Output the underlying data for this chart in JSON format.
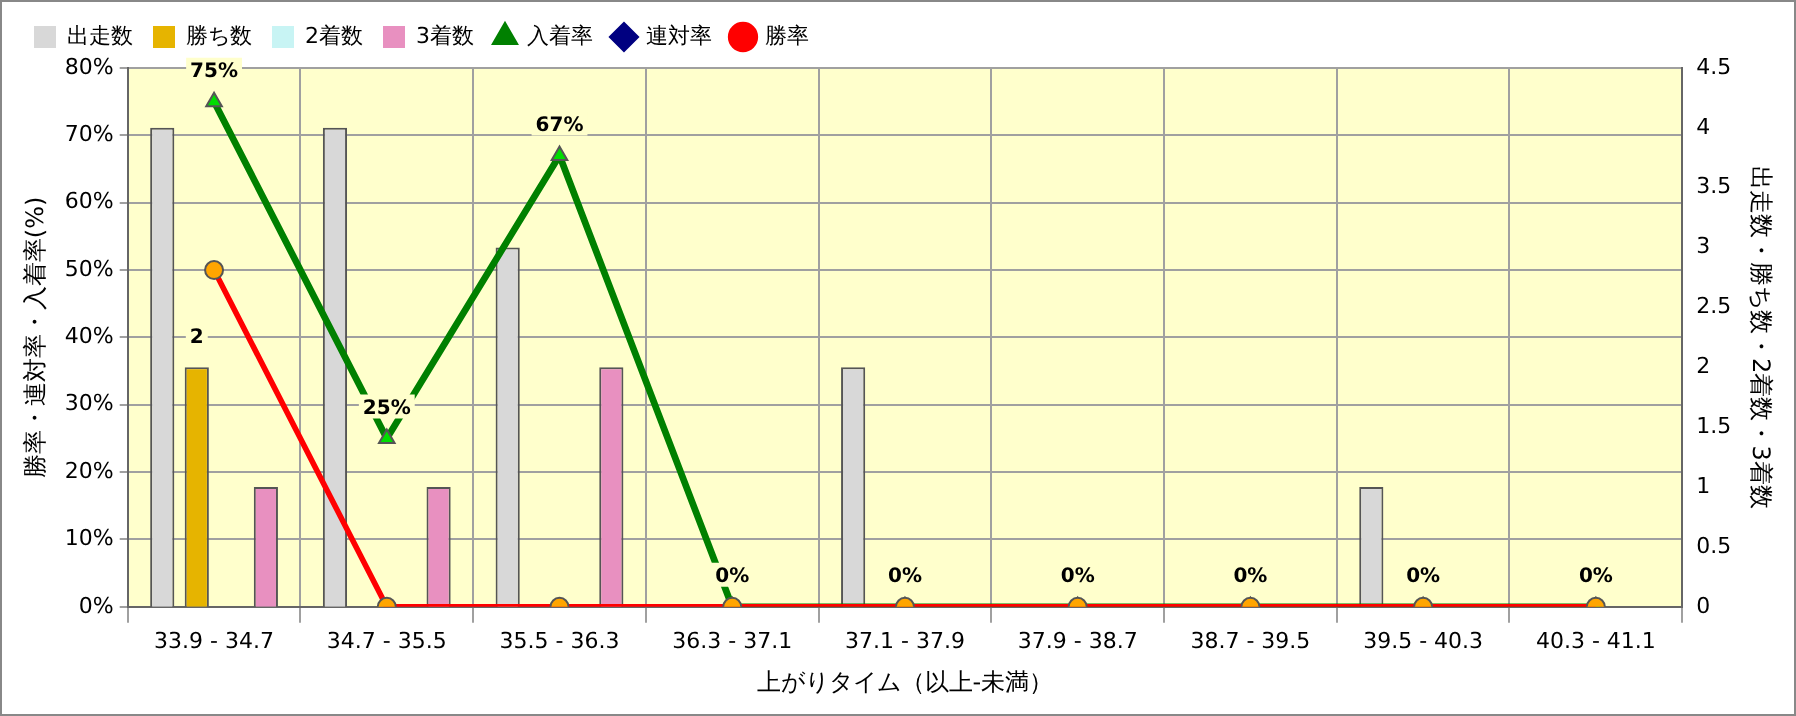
{
  "chart_data": {
    "type": "bar",
    "xlabel": "上がりタイム（以上-未満）",
    "ylabel": "勝率・連対率・入着率(%)",
    "y2label": "出走数・勝ち数・2着数・3着数",
    "categories": [
      "33.9 - 34.7",
      "34.7 - 35.5",
      "35.5 - 36.3",
      "36.3 - 37.1",
      "37.1 - 37.9",
      "37.9 - 38.7",
      "38.7 - 39.5",
      "39.5 - 40.3",
      "40.3 - 41.1"
    ],
    "series": [
      {
        "name": "出走数",
        "type": "bar",
        "axis": "y2",
        "color": "#d8d8d8",
        "values": [
          4,
          4,
          3,
          0,
          2,
          0,
          0,
          1,
          0
        ]
      },
      {
        "name": "勝ち数",
        "type": "bar",
        "axis": "y2",
        "color": "#e6b400",
        "values": [
          2,
          0,
          0,
          0,
          0,
          0,
          0,
          0,
          0
        ],
        "value_labels": [
          "2",
          null,
          null,
          null,
          null,
          null,
          null,
          null,
          null
        ]
      },
      {
        "name": "2着数",
        "type": "bar",
        "axis": "y2",
        "color": "#c8f4f4",
        "values": [
          0,
          0,
          0,
          0,
          0,
          0,
          0,
          0,
          0
        ]
      },
      {
        "name": "3着数",
        "type": "bar",
        "axis": "y2",
        "color": "#e890c0",
        "values": [
          1,
          1,
          2,
          0,
          0,
          0,
          0,
          0,
          0
        ]
      },
      {
        "name": "入着率",
        "type": "line",
        "axis": "y",
        "color": "#008000",
        "marker": "triangle",
        "values": [
          75,
          25,
          67,
          0,
          0,
          0,
          0,
          0,
          0
        ],
        "value_labels": [
          "75%",
          "25%",
          "67%",
          "0%",
          "0%",
          "0%",
          "0%",
          "0%",
          "0%"
        ]
      },
      {
        "name": "連対率",
        "type": "line",
        "axis": "y",
        "color": "#000080",
        "marker": "diamond",
        "values": [
          null,
          null,
          null,
          null,
          null,
          null,
          null,
          null,
          null
        ]
      },
      {
        "name": "勝率",
        "type": "line",
        "axis": "y",
        "color": "#ff0000",
        "marker": "circle",
        "values": [
          50,
          0,
          0,
          0,
          0,
          0,
          0,
          0,
          0
        ]
      }
    ],
    "ylim": [
      0,
      80
    ],
    "yticks": [
      {
        "value": 0,
        "label": "0%"
      },
      {
        "value": 10,
        "label": "10%"
      },
      {
        "value": 20,
        "label": "20%"
      },
      {
        "value": 30,
        "label": "30%"
      },
      {
        "value": 40,
        "label": "40%"
      },
      {
        "value": 50,
        "label": "50%"
      },
      {
        "value": 60,
        "label": "60%"
      },
      {
        "value": 70,
        "label": "70%"
      },
      {
        "value": 80,
        "label": "80%"
      }
    ],
    "y2lim": [
      0,
      4.5
    ],
    "y2ticks": [
      0,
      0.5,
      1,
      1.5,
      2,
      2.5,
      3,
      3.5,
      4,
      4.5
    ],
    "grid": true,
    "legend": "top left"
  }
}
